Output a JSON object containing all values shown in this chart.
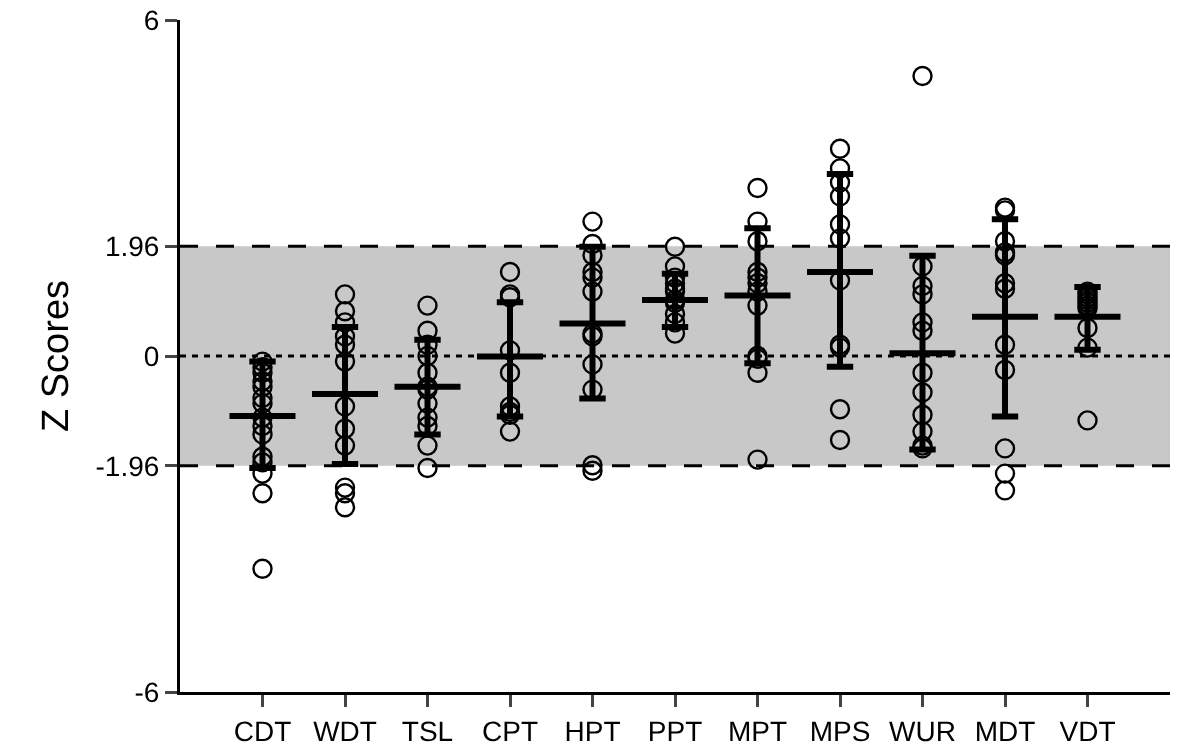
{
  "chart_data": {
    "type": "scatter",
    "ylabel": "Z Scores",
    "categories": [
      "CDT",
      "WDT",
      "TSL",
      "CPT",
      "HPT",
      "PPT",
      "MPT",
      "MPS",
      "WUR",
      "MDT",
      "VDT"
    ],
    "ylim": [
      -6,
      6
    ],
    "yticks": [
      -6,
      -1.96,
      0,
      1.96,
      6
    ],
    "grid": false,
    "bands": [
      {
        "axis": "y",
        "from": -1.96,
        "to": 1.96,
        "color": "#c8c8c8"
      }
    ],
    "ref_lines": [
      {
        "axis": "y",
        "value": 1.96,
        "line_style": "dashed",
        "color": "#000000"
      },
      {
        "axis": "y",
        "value": -1.96,
        "line_style": "dashed",
        "color": "#000000"
      },
      {
        "axis": "y",
        "value": 0,
        "line_style": "dotted",
        "color": "#000000"
      }
    ],
    "series": [
      {
        "marker": "circle",
        "color": "#000000",
        "x": [
          "CDT",
          "CDT",
          "CDT",
          "CDT",
          "CDT",
          "CDT",
          "CDT",
          "CDT",
          "CDT",
          "CDT",
          "CDT",
          "CDT",
          "CDT",
          "CDT",
          "CDT",
          "WDT",
          "WDT",
          "WDT",
          "WDT",
          "WDT",
          "WDT",
          "WDT",
          "WDT",
          "WDT",
          "WDT",
          "WDT",
          "WDT",
          "TSL",
          "TSL",
          "TSL",
          "TSL",
          "TSL",
          "TSL",
          "TSL",
          "TSL",
          "TSL",
          "TSL",
          "TSL",
          "TSL",
          "CPT",
          "CPT",
          "CPT",
          "CPT",
          "CPT",
          "CPT",
          "CPT",
          "CPT",
          "CPT",
          "HPT",
          "HPT",
          "HPT",
          "HPT",
          "HPT",
          "HPT",
          "HPT",
          "HPT",
          "HPT",
          "HPT",
          "HPT",
          "HPT",
          "PPT",
          "PPT",
          "PPT",
          "PPT",
          "PPT",
          "PPT",
          "PPT",
          "PPT",
          "PPT",
          "PPT",
          "PPT",
          "MPT",
          "MPT",
          "MPT",
          "MPT",
          "MPT",
          "MPT",
          "MPT",
          "MPT",
          "MPT",
          "MPT",
          "MPT",
          "MPT",
          "MPS",
          "MPS",
          "MPS",
          "MPS",
          "MPS",
          "MPS",
          "MPS",
          "MPS",
          "MPS",
          "MPS",
          "MPS",
          "WUR",
          "WUR",
          "WUR",
          "WUR",
          "WUR",
          "WUR",
          "WUR",
          "WUR",
          "WUR",
          "WUR",
          "WUR",
          "WUR",
          "MDT",
          "MDT",
          "MDT",
          "MDT",
          "MDT",
          "MDT",
          "MDT",
          "MDT",
          "MDT",
          "MDT",
          "MDT",
          "MDT",
          "VDT",
          "VDT",
          "VDT",
          "VDT",
          "VDT",
          "VDT",
          "VDT",
          "VDT",
          "VDT",
          "VDT"
        ],
        "values": [
          -0.2,
          -0.1,
          -0.3,
          -0.45,
          -0.55,
          -0.75,
          -0.85,
          -1.1,
          -1.25,
          -1.4,
          -1.8,
          -1.9,
          -2.1,
          -2.45,
          -3.8,
          1.1,
          0.8,
          0.6,
          0.35,
          0.2,
          -0.1,
          -0.9,
          -1.3,
          -1.6,
          -2.35,
          -2.45,
          -2.7,
          0.9,
          0.45,
          0.2,
          0.0,
          -0.3,
          -0.55,
          -0.6,
          -0.85,
          -1.1,
          -1.25,
          -1.6,
          -2.0,
          1.5,
          1.1,
          1.05,
          0.1,
          -0.3,
          -0.9,
          -1.0,
          -1.05,
          -1.35,
          2.4,
          2.0,
          1.8,
          1.5,
          1.4,
          1.15,
          0.4,
          0.35,
          -0.15,
          -0.6,
          -1.95,
          -2.05,
          1.95,
          1.6,
          1.4,
          1.2,
          1.15,
          1.0,
          0.95,
          0.75,
          0.6,
          0.4,
          1.3,
          3.0,
          2.4,
          2.05,
          1.5,
          1.4,
          1.3,
          1.15,
          0.9,
          0.0,
          -0.05,
          -0.3,
          -1.85,
          3.7,
          3.35,
          3.1,
          2.85,
          2.35,
          2.1,
          1.35,
          0.2,
          0.15,
          -0.95,
          -1.5,
          5.0,
          1.6,
          1.25,
          1.1,
          0.6,
          0.45,
          -0.3,
          -0.65,
          -1.05,
          -1.35,
          -1.6,
          -1.65,
          2.65,
          2.6,
          2.05,
          1.85,
          1.8,
          1.3,
          1.2,
          0.2,
          -0.25,
          -1.65,
          -2.1,
          -2.4,
          1.15,
          1.1,
          1.05,
          1.0,
          0.95,
          0.9,
          0.85,
          0.5,
          0.15,
          -1.15
        ]
      },
      {
        "type": "box",
        "color": "#000000",
        "boxes": [
          {
            "low": -2.0,
            "q1": -1.07,
            "median": -1.07,
            "q3": -1.07,
            "high": -0.1
          },
          {
            "low": -1.93,
            "q1": -0.68,
            "median": -0.68,
            "q3": -0.68,
            "high": 0.52
          },
          {
            "low": -1.4,
            "q1": -0.55,
            "median": -0.55,
            "q3": -0.55,
            "high": 0.29
          },
          {
            "low": -1.08,
            "q1": -0.01,
            "median": -0.01,
            "q3": -0.01,
            "high": 0.96
          },
          {
            "low": -0.76,
            "q1": 0.58,
            "median": 0.58,
            "q3": 0.58,
            "high": 1.95
          },
          {
            "low": 0.52,
            "q1": 1.0,
            "median": 1.0,
            "q3": 1.0,
            "high": 1.47
          },
          {
            "low": -0.13,
            "q1": 1.08,
            "median": 1.08,
            "q3": 1.08,
            "high": 2.28
          },
          {
            "low": -0.19,
            "q1": 1.5,
            "median": 1.5,
            "q3": 1.5,
            "high": 3.25
          },
          {
            "low": -1.67,
            "q1": 0.05,
            "median": 0.05,
            "q3": 0.05,
            "high": 1.79
          },
          {
            "low": -1.08,
            "q1": 0.7,
            "median": 0.7,
            "q3": 0.7,
            "high": 2.44
          },
          {
            "low": 0.11,
            "q1": 0.7,
            "median": 0.7,
            "q3": 0.7,
            "high": 1.23
          }
        ]
      }
    ]
  }
}
